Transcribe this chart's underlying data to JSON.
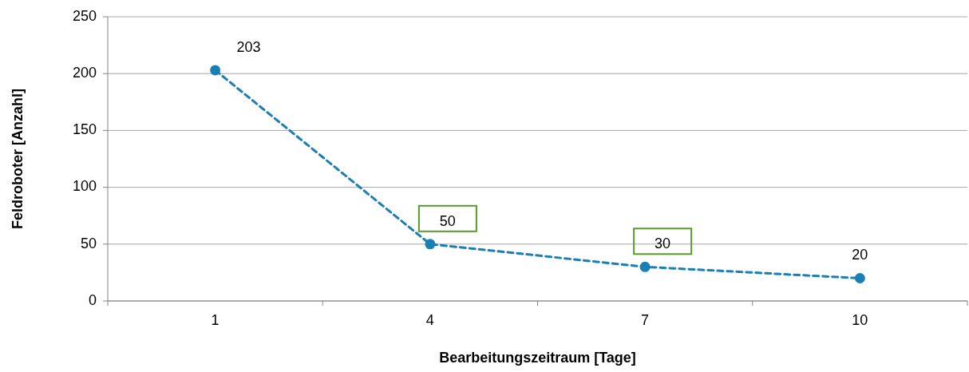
{
  "chart_data": {
    "type": "line",
    "xlabel": "Bearbeitungszeitraum [Tage]",
    "ylabel": "Feldroboter [Anzahl]",
    "categories": [
      "1",
      "4",
      "7",
      "10"
    ],
    "series": [
      {
        "color": "#1a7fb5",
        "values": [
          203,
          50,
          30,
          20
        ]
      }
    ],
    "ylim": [
      0,
      250
    ],
    "yticks": [
      0,
      50,
      100,
      150,
      200,
      250
    ],
    "grid": "y",
    "marker": "circle",
    "line_style": "dashed",
    "data_labels": true
  }
}
